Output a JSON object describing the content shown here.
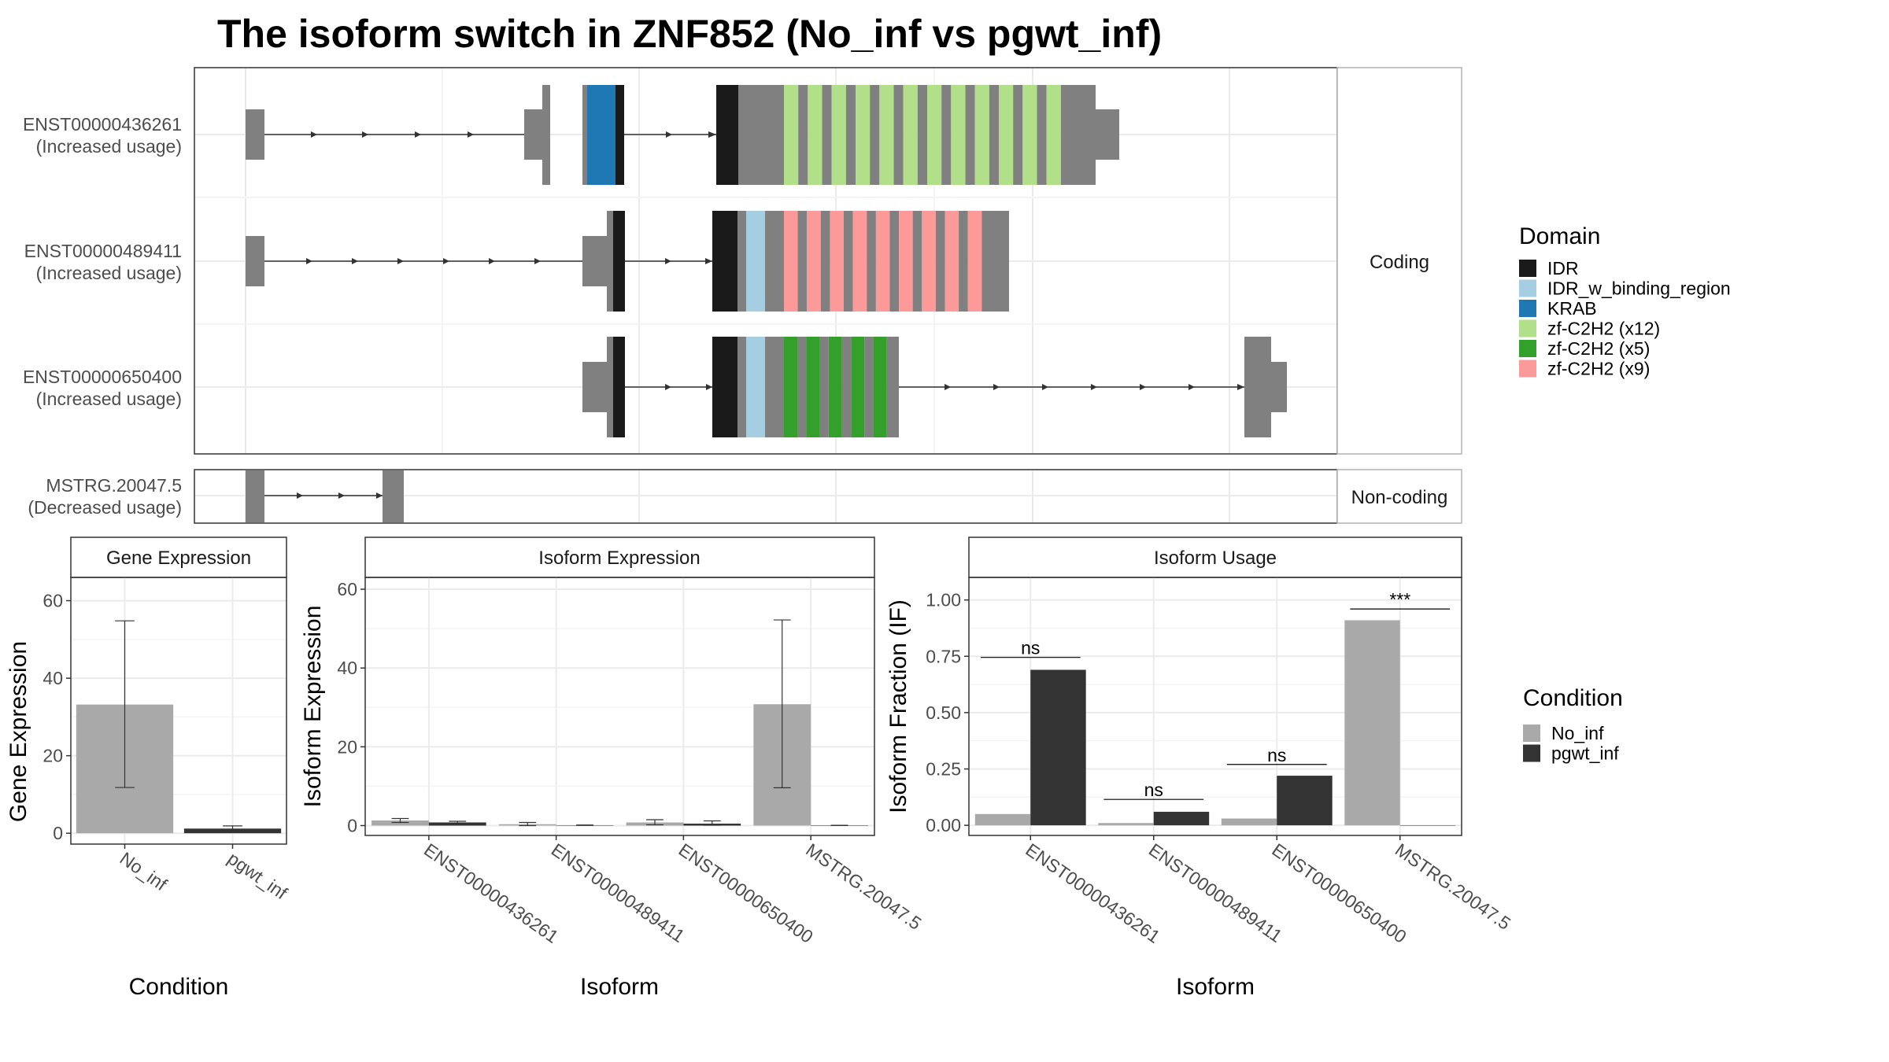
{
  "title": "The isoform switch in ZNF852 (No_inf vs pgwt_inf)",
  "colors": {
    "exon": "#808080",
    "IDR": "#1a1a1a",
    "IDR_w_binding_region": "#a6cee3",
    "KRAB": "#1f78b4",
    "zf12": "#b2df8a",
    "zf5": "#33a02c",
    "zf9": "#fb9a99",
    "No_inf": "#a9a9a9",
    "pgwt_inf": "#333333"
  },
  "transcripts": {
    "strips": {
      "coding": "Coding",
      "noncoding": "Non-coding"
    },
    "rows": [
      {
        "id": "ENST00000436261",
        "usage": "(Increased usage)"
      },
      {
        "id": "ENST00000489411",
        "usage": "(Increased usage)"
      },
      {
        "id": "ENST00000650400",
        "usage": "(Increased usage)"
      },
      {
        "id": "MSTRG.20047.5",
        "usage": "(Decreased usage)"
      }
    ]
  },
  "domain_legend": {
    "title": "Domain",
    "items": [
      {
        "key": "IDR",
        "label": "IDR"
      },
      {
        "key": "IDR_w_binding_region",
        "label": "IDR_w_binding_region"
      },
      {
        "key": "KRAB",
        "label": "KRAB"
      },
      {
        "key": "zf12",
        "label": "zf-C2H2 (x12)"
      },
      {
        "key": "zf5",
        "label": "zf-C2H2 (x5)"
      },
      {
        "key": "zf9",
        "label": "zf-C2H2 (x9)"
      }
    ]
  },
  "condition_legend": {
    "title": "Condition",
    "items": [
      {
        "key": "No_inf",
        "label": "No_inf"
      },
      {
        "key": "pgwt_inf",
        "label": "pgwt_inf"
      }
    ]
  },
  "chart_data": [
    {
      "type": "bar",
      "title": "Gene Expression",
      "xlabel": "Condition",
      "ylabel": "Gene Expression",
      "categories": [
        "No_inf",
        "pgwt_inf"
      ],
      "values": [
        33.2,
        1.2
      ],
      "errors": [
        [
          11.8,
          54.8
        ],
        [
          0.4,
          1.9
        ]
      ],
      "yticks": [
        0,
        20,
        40,
        60
      ],
      "ylim": [
        -2.8,
        66
      ]
    },
    {
      "type": "bar",
      "title": "Isoform Expression",
      "xlabel": "Isoform",
      "ylabel": "Isoform Expression",
      "categories": [
        "ENST00000436261",
        "ENST00000489411",
        "ENST00000650400",
        "MSTRG.20047.5"
      ],
      "series": [
        {
          "name": "No_inf",
          "values": [
            1.3,
            0.35,
            0.8,
            30.8
          ],
          "errors": [
            [
              0.8,
              1.8
            ],
            [
              0,
              0.8
            ],
            [
              0.2,
              1.5
            ],
            [
              9.6,
              52.2
            ]
          ]
        },
        {
          "name": "pgwt_inf",
          "values": [
            0.8,
            0.1,
            0.5,
            0.05
          ],
          "errors": [
            [
              0.5,
              1.1
            ],
            [
              0.05,
              0.15
            ],
            [
              0.1,
              1.2
            ],
            [
              0.02,
              0.08
            ]
          ]
        }
      ],
      "yticks": [
        0,
        20,
        40,
        60
      ],
      "ylim": [
        -2.5,
        63
      ]
    },
    {
      "type": "bar",
      "title": "Isoform Usage",
      "xlabel": "Isoform",
      "ylabel": "Isoform Fraction (IF)",
      "categories": [
        "ENST00000436261",
        "ENST00000489411",
        "ENST00000650400",
        "MSTRG.20047.5"
      ],
      "series": [
        {
          "name": "No_inf",
          "values": [
            0.05,
            0.01,
            0.03,
            0.91
          ]
        },
        {
          "name": "pgwt_inf",
          "values": [
            0.69,
            0.06,
            0.22,
            0.0
          ]
        }
      ],
      "significance": [
        "ns",
        "ns",
        "ns",
        "***"
      ],
      "sig_y": [
        0.745,
        0.115,
        0.27,
        0.96
      ],
      "yticks": [
        "0.00",
        "0.25",
        "0.50",
        "0.75",
        "1.00"
      ],
      "ylim": [
        -0.045,
        1.1
      ]
    }
  ]
}
